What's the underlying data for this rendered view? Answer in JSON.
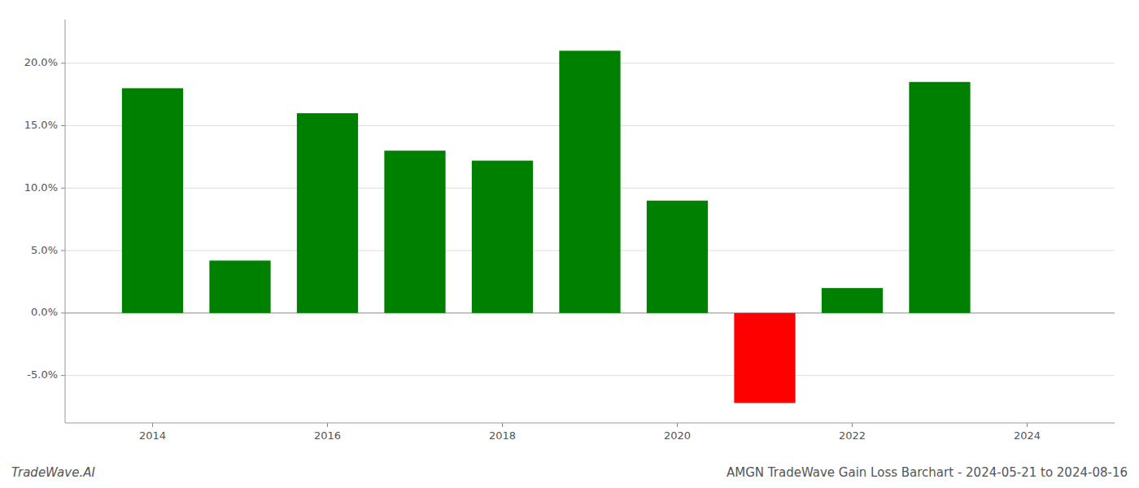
{
  "chart_data": {
    "type": "bar",
    "title": "AMGN TradeWave Gain Loss Barchart - 2024-05-21 to 2024-08-16",
    "annotations": [
      "TradeWave.AI"
    ],
    "x": [
      2014,
      2015,
      2016,
      2017,
      2018,
      2019,
      2020,
      2021,
      2022,
      2023
    ],
    "values": [
      0.18,
      0.042,
      0.16,
      0.13,
      0.122,
      0.21,
      0.09,
      -0.072,
      0.02,
      0.185
    ],
    "colors": [
      "#008000",
      "#008000",
      "#008000",
      "#008000",
      "#008000",
      "#008000",
      "#008000",
      "#ff0000",
      "#008000",
      "#008000"
    ],
    "xlim": [
      2013.0,
      2025.0
    ],
    "xticks": [
      2014,
      2016,
      2018,
      2020,
      2022,
      2024
    ],
    "ylim": [
      -0.088,
      0.235
    ],
    "yticks": [
      {
        "value": -0.05,
        "label": "-5.0%"
      },
      {
        "value": 0.0,
        "label": "0.0%"
      },
      {
        "value": 0.05,
        "label": "5.0%"
      },
      {
        "value": 0.1,
        "label": "10.0%"
      },
      {
        "value": 0.15,
        "label": "15.0%"
      },
      {
        "value": 0.2,
        "label": "20.0%"
      }
    ],
    "grid": true
  }
}
